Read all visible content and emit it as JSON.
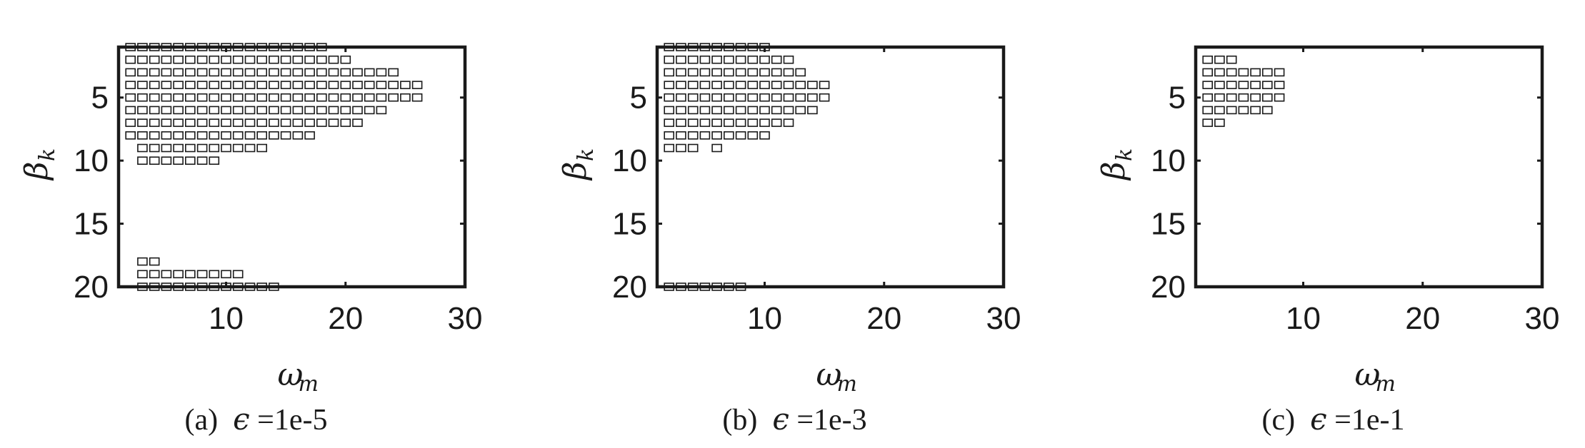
{
  "chart_data": [
    {
      "type": "scatter",
      "marker": "open-square",
      "xlabel": "ω",
      "xlabel_sub": "m",
      "ylabel": "β",
      "ylabel_sub": "k",
      "xlim": [
        1,
        30
      ],
      "ylim": [
        20,
        1
      ],
      "y_reversed": true,
      "xticks": [
        10,
        20,
        30
      ],
      "yticks": [
        5,
        10,
        15,
        20
      ],
      "caption": {
        "tag": "(a)",
        "symbol": "ϵ",
        "text": " =1e-5"
      },
      "rows": [
        {
          "y": 1,
          "x_start": 2,
          "x_end": 18
        },
        {
          "y": 2,
          "x_start": 2,
          "x_end": 20
        },
        {
          "y": 3,
          "x_start": 2,
          "x_end": 24
        },
        {
          "y": 4,
          "x_start": 2,
          "x_end": 26
        },
        {
          "y": 5,
          "x_start": 2,
          "x_end": 26
        },
        {
          "y": 6,
          "x_start": 2,
          "x_end": 23
        },
        {
          "y": 7,
          "x_start": 2,
          "x_end": 21
        },
        {
          "y": 8,
          "x_start": 2,
          "x_end": 17
        },
        {
          "y": 9,
          "x_start": 3,
          "x_end": 13
        },
        {
          "y": 10,
          "x_start": 3,
          "x_end": 9
        },
        {
          "y": 18,
          "x_start": 3,
          "x_end": 4
        },
        {
          "y": 19,
          "x_start": 3,
          "x_end": 11
        },
        {
          "y": 20,
          "x_start": 3,
          "x_end": 14
        }
      ]
    },
    {
      "type": "scatter",
      "marker": "open-square",
      "xlabel": "ω",
      "xlabel_sub": "m",
      "ylabel": "β",
      "ylabel_sub": "k",
      "xlim": [
        1,
        30
      ],
      "ylim": [
        20,
        1
      ],
      "y_reversed": true,
      "xticks": [
        10,
        20,
        30
      ],
      "yticks": [
        5,
        10,
        15,
        20
      ],
      "caption": {
        "tag": "(b)",
        "symbol": "ϵ",
        "text": " =1e-3"
      },
      "rows": [
        {
          "y": 1,
          "x_start": 2,
          "x_end": 10
        },
        {
          "y": 2,
          "x_start": 2,
          "x_end": 12
        },
        {
          "y": 3,
          "x_start": 2,
          "x_end": 13
        },
        {
          "y": 4,
          "x_start": 2,
          "x_end": 15
        },
        {
          "y": 5,
          "x_start": 2,
          "x_end": 15
        },
        {
          "y": 6,
          "x_start": 2,
          "x_end": 14
        },
        {
          "y": 7,
          "x_start": 2,
          "x_end": 12
        },
        {
          "y": 8,
          "x_start": 2,
          "x_end": 10
        },
        {
          "y": 9,
          "x_start": 2,
          "x_end": 4
        },
        {
          "y": 9,
          "x_start": 6,
          "x_end": 6
        },
        {
          "y": 20,
          "x_start": 2,
          "x_end": 8
        }
      ]
    },
    {
      "type": "scatter",
      "marker": "open-square",
      "xlabel": "ω",
      "xlabel_sub": "m",
      "ylabel": "β",
      "ylabel_sub": "k",
      "xlim": [
        1,
        30
      ],
      "ylim": [
        20,
        1
      ],
      "y_reversed": true,
      "xticks": [
        10,
        20,
        30
      ],
      "yticks": [
        5,
        10,
        15,
        20
      ],
      "caption": {
        "tag": "(c)",
        "symbol": "ϵ",
        "text": " =1e-1"
      },
      "rows": [
        {
          "y": 2,
          "x_start": 2,
          "x_end": 4
        },
        {
          "y": 3,
          "x_start": 2,
          "x_end": 8
        },
        {
          "y": 4,
          "x_start": 2,
          "x_end": 8
        },
        {
          "y": 5,
          "x_start": 2,
          "x_end": 8
        },
        {
          "y": 6,
          "x_start": 2,
          "x_end": 7
        },
        {
          "y": 7,
          "x_start": 2,
          "x_end": 3
        }
      ]
    }
  ]
}
